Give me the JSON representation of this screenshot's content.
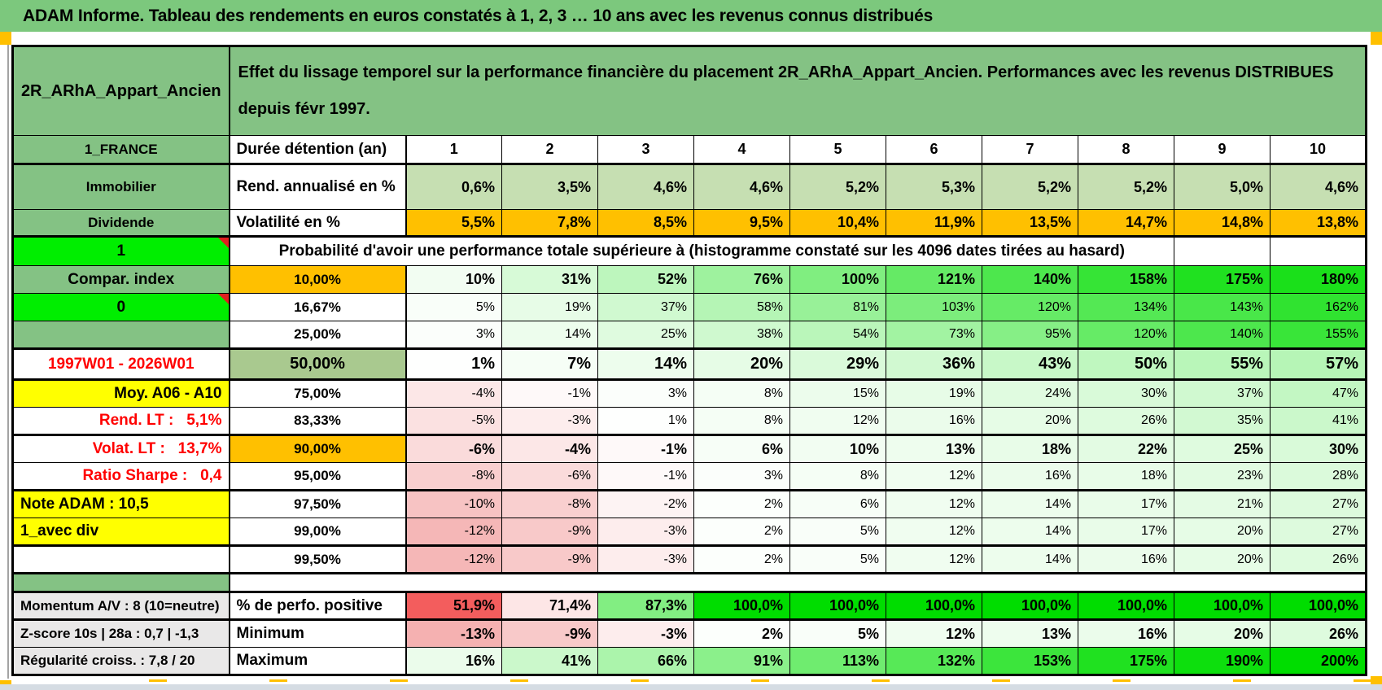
{
  "app": {
    "title": "ADAM Informe. Tableau des rendements en euros constatés à 1, 2, 3 … 10 ans avec les revenus connus distribués"
  },
  "colors": {
    "title_green": "#7CC87D",
    "cell_green": "#84C284",
    "bright_green": "#00EE00",
    "orange": "#FFC000",
    "yellow": "#FFFF00",
    "sage": "#A9C98F",
    "light_green_row": "#C6DFB2",
    "gray_label": "#E9E8E8",
    "neg_strong": "#F3A5A5",
    "pos_strong": "#00DD00",
    "pct_red": "#F25050",
    "red_text": "#FF0000"
  },
  "sheet": {
    "corner": "2R_ARhA_Appart_Ancien",
    "header_note": "Effet du lissage temporel sur la performance financière du placement 2R_ARhA_Appart_Ancien. Performances avec les revenus DISTRIBUES depuis févr 1997.",
    "region": "1_FRANCE",
    "duration_label": "Durée détention (an)",
    "years": [
      "1",
      "2",
      "3",
      "4",
      "5",
      "6",
      "7",
      "8",
      "9",
      "10"
    ],
    "asset_class": "Immobilier",
    "annualized": {
      "label": "Rend. annualisé en %",
      "values": [
        "0,6%",
        "3,5%",
        "4,6%",
        "4,6%",
        "5,2%",
        "5,3%",
        "5,2%",
        "5,2%",
        "5,0%",
        "4,6%"
      ]
    },
    "income_type": "Dividende",
    "volatility": {
      "label": "Volatilité en %",
      "values": [
        "5,5%",
        "7,8%",
        "8,5%",
        "9,5%",
        "10,4%",
        "11,9%",
        "13,5%",
        "14,7%",
        "14,8%",
        "13,8%"
      ]
    },
    "flag_one": "1",
    "prob_header": "Probabilité d'avoir une performance totale supérieure à (histogramme constaté sur les 4096 dates tirées au hasard)",
    "prob_rows": [
      {
        "left": {
          "text": "Compar. index",
          "bg": "green"
        },
        "threshold": "10,00%",
        "tstyle": "orange",
        "bold": true,
        "values": [
          10,
          31,
          52,
          76,
          100,
          121,
          140,
          158,
          175,
          180
        ]
      },
      {
        "left": {
          "text": "0",
          "bg": "bright",
          "marker": true
        },
        "threshold": "16,67%",
        "values": [
          5,
          19,
          37,
          58,
          81,
          103,
          120,
          134,
          143,
          162
        ]
      },
      {
        "left": {
          "text": "",
          "bg": "green"
        },
        "threshold": "25,00%",
        "values": [
          3,
          14,
          25,
          38,
          54,
          73,
          95,
          120,
          140,
          155
        ]
      },
      {
        "left": {
          "text": "1997W01 - 2026W01",
          "style": "red",
          "align": "center"
        },
        "threshold": "50,00%",
        "tstyle": "sage",
        "big": true,
        "values": [
          1,
          7,
          14,
          20,
          29,
          36,
          43,
          50,
          55,
          57
        ],
        "thick": "tb"
      },
      {
        "left": {
          "text": "Moy. A06 - A10",
          "bg": "yellow",
          "align": "right"
        },
        "threshold": "75,00%",
        "values": [
          -4,
          -1,
          3,
          8,
          15,
          19,
          24,
          30,
          37,
          47
        ]
      },
      {
        "left": {
          "text": "Rend. LT :   5,1%",
          "style": "red",
          "align": "right"
        },
        "threshold": "83,33%",
        "values": [
          -5,
          -3,
          1,
          8,
          12,
          16,
          20,
          26,
          35,
          41
        ]
      },
      {
        "left": {
          "text": "Volat. LT :   13,7%",
          "style": "red",
          "align": "right"
        },
        "threshold": "90,00%",
        "tstyle": "orange",
        "bold": true,
        "values": [
          -6,
          -4,
          -1,
          6,
          10,
          13,
          18,
          22,
          25,
          30
        ],
        "thick": "t"
      },
      {
        "left": {
          "text": "Ratio Sharpe :   0,4",
          "style": "red",
          "align": "right"
        },
        "threshold": "95,00%",
        "values": [
          -8,
          -6,
          -1,
          3,
          8,
          12,
          16,
          18,
          23,
          28
        ],
        "thick": "b"
      },
      {
        "left": {
          "text": "Note ADAM : 10,5",
          "bg": "yellow",
          "align": "left"
        },
        "threshold": "97,50%",
        "values": [
          -10,
          -8,
          -2,
          2,
          6,
          12,
          14,
          17,
          21,
          27
        ]
      },
      {
        "left": {
          "text": "1_avec div",
          "bg": "yellow",
          "align": "left"
        },
        "threshold": "99,00%",
        "values": [
          -12,
          -9,
          -3,
          2,
          5,
          12,
          14,
          17,
          20,
          27
        ],
        "thick": "b"
      },
      {
        "left": {
          "text": ""
        },
        "threshold": "99,50%",
        "values": [
          -12,
          -9,
          -3,
          2,
          5,
          12,
          14,
          16,
          20,
          26
        ],
        "thick": "b"
      }
    ],
    "bottom_rows": [
      {
        "left": "Momentum A/V : 8 (10=neutre)",
        "label": "% de perfo. positive",
        "scale": "pct",
        "decimals": 1,
        "values": [
          51.9,
          71.4,
          87.3,
          100,
          100,
          100,
          100,
          100,
          100,
          100
        ]
      },
      {
        "left": "Z-score 10s | 28a : 0,7 | -1,3",
        "label": "Minimum",
        "scale": "perf",
        "values": [
          -13,
          -9,
          -3,
          2,
          5,
          12,
          13,
          16,
          20,
          26
        ]
      },
      {
        "left": "Régularité croiss. : 7,8 / 20",
        "label": "Maximum",
        "scale": "perf",
        "values": [
          16,
          41,
          66,
          91,
          113,
          132,
          153,
          175,
          190,
          200
        ]
      }
    ]
  }
}
